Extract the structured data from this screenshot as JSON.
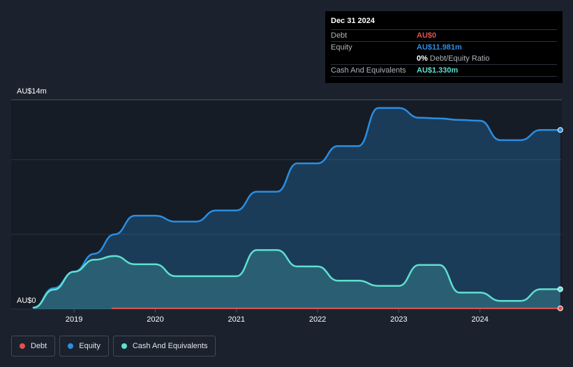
{
  "tooltip": {
    "date": "Dec 31 2024",
    "debt_label": "Debt",
    "debt_value": "AU$0",
    "equity_label": "Equity",
    "equity_value": "AU$11.981m",
    "ratio_pct": "0%",
    "ratio_label": "Debt/Equity Ratio",
    "cash_label": "Cash And Equivalents",
    "cash_value": "AU$1.330m"
  },
  "legend": [
    {
      "label": "Debt",
      "color": "#e05252"
    },
    {
      "label": "Equity",
      "color": "#2a8ee2"
    },
    {
      "label": "Cash And Equivalents",
      "color": "#5ee0d0"
    }
  ],
  "chart_data": {
    "type": "area",
    "ylim": [
      0,
      14
    ],
    "xlim": [
      2018.5,
      2025.0
    ],
    "y_tick_labels": [
      "AU$0",
      "AU$14m"
    ],
    "x_ticks": [
      2019,
      2020,
      2021,
      2022,
      2023,
      2024
    ],
    "x_tick_labels": [
      "2019",
      "2020",
      "2021",
      "2022",
      "2023",
      "2024"
    ],
    "grid": true,
    "series": [
      {
        "name": "Debt",
        "color": "#e05252",
        "x": [
          2019.47,
          2024.99
        ],
        "values": [
          0.05,
          0.05
        ]
      },
      {
        "name": "Equity",
        "color": "#2a8ee2",
        "x": [
          2018.5,
          2018.75,
          2019.0,
          2019.25,
          2019.5,
          2019.75,
          2020.0,
          2020.25,
          2020.5,
          2020.75,
          2021.0,
          2021.25,
          2021.5,
          2021.75,
          2022.0,
          2022.25,
          2022.5,
          2022.75,
          2023.0,
          2023.25,
          2023.5,
          2023.75,
          2024.0,
          2024.25,
          2024.5,
          2024.75,
          2024.99
        ],
        "values": [
          0.1,
          1.4,
          2.5,
          3.7,
          5.0,
          6.25,
          6.25,
          5.85,
          5.85,
          6.6,
          6.6,
          7.85,
          7.85,
          9.75,
          9.75,
          10.9,
          10.9,
          13.45,
          13.45,
          12.8,
          12.75,
          12.65,
          12.6,
          11.3,
          11.3,
          11.98,
          11.98
        ]
      },
      {
        "name": "Cash And Equivalents",
        "color": "#5ee0d0",
        "x": [
          2018.5,
          2018.75,
          2019.0,
          2019.25,
          2019.5,
          2019.75,
          2020.0,
          2020.25,
          2020.5,
          2020.75,
          2021.0,
          2021.25,
          2021.5,
          2021.75,
          2022.0,
          2022.25,
          2022.5,
          2022.75,
          2023.0,
          2023.25,
          2023.5,
          2023.75,
          2024.0,
          2024.25,
          2024.5,
          2024.75,
          2024.99
        ],
        "values": [
          0.1,
          1.3,
          2.5,
          3.3,
          3.55,
          3.0,
          3.0,
          2.2,
          2.2,
          2.2,
          2.2,
          3.95,
          3.95,
          2.85,
          2.85,
          1.9,
          1.9,
          1.55,
          1.55,
          2.95,
          2.95,
          1.1,
          1.1,
          0.55,
          0.55,
          1.33,
          1.33
        ]
      }
    ]
  }
}
